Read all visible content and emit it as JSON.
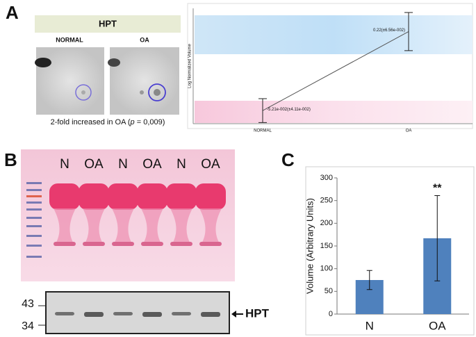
{
  "panels": [
    "A",
    "B",
    "C"
  ],
  "panel_a": {
    "header": "HPT",
    "lanes": [
      "NORMAL",
      "OA"
    ],
    "caption": [
      "2-fold increased in OA (",
      "p",
      " = 0,009)"
    ]
  },
  "panel_b": {
    "lanes": [
      "N",
      "OA",
      "N",
      "OA",
      "N",
      "OA"
    ],
    "markers": [
      "43",
      "34"
    ],
    "band_label": "HPT"
  },
  "chart_data": [
    {
      "type": "line",
      "ylabel": "Log Normalized Volume",
      "categories": [
        "NORMAL",
        "OA"
      ],
      "values": [
        -0.0521,
        0.22
      ],
      "errors": [
        0.0411,
        0.0656
      ],
      "value_labels": [
        "-5.21e-002(±4.11e-002)",
        "0.22(±6.56e-002)"
      ],
      "ylim": [
        -0.097,
        0.3
      ],
      "color": "#555555"
    },
    {
      "type": "bar",
      "ylabel": "Volume (Arbitrary Units)",
      "categories": [
        "N",
        "OA"
      ],
      "values": [
        75,
        167
      ],
      "errors": [
        21,
        94
      ],
      "annotation": "**",
      "ylim": [
        0,
        300
      ],
      "yticks": [
        0,
        50,
        100,
        150,
        200,
        250,
        300
      ],
      "color": "#4f81bd"
    }
  ]
}
